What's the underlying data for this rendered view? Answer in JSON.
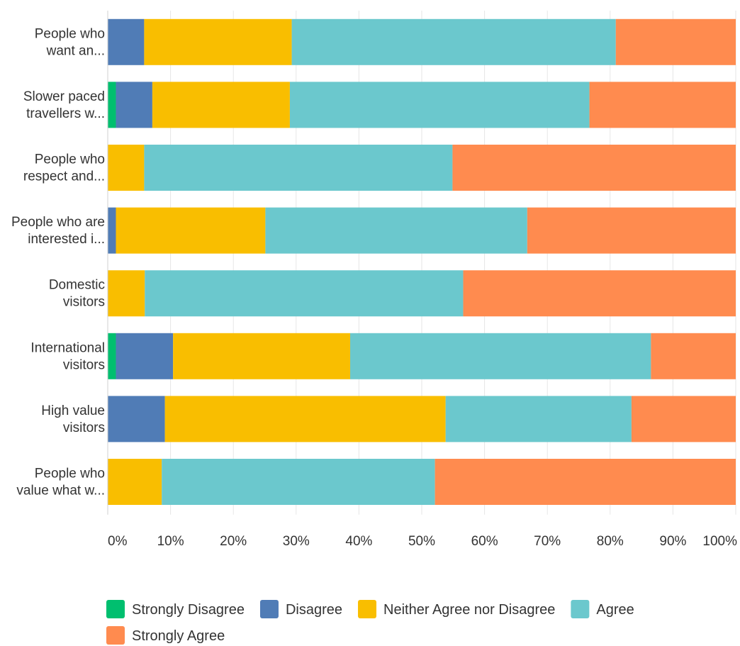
{
  "chart_data": {
    "type": "bar",
    "orientation": "horizontal",
    "stacked": true,
    "categories": [
      [
        "People who",
        "want an..."
      ],
      [
        "Slower paced",
        "travellers w..."
      ],
      [
        "People who",
        "respect and..."
      ],
      [
        "People who are",
        "interested i..."
      ],
      [
        "Domestic",
        "visitors"
      ],
      [
        "International",
        "visitors"
      ],
      [
        "High value",
        "visitors"
      ],
      [
        "People who",
        "value what w..."
      ]
    ],
    "series": [
      {
        "name": "Strongly Disagree",
        "color": "#00BF6F",
        "values": [
          0,
          1.3,
          0,
          0,
          0,
          1.3,
          0,
          0
        ]
      },
      {
        "name": "Disagree",
        "color": "#507CB6",
        "values": [
          5.8,
          5.8,
          0,
          1.3,
          0,
          9.1,
          9.1,
          0
        ]
      },
      {
        "name": "Neither Agree nor Disagree",
        "color": "#F9BE00",
        "values": [
          23.5,
          21.9,
          5.8,
          23.8,
          5.9,
          28.2,
          44.7,
          8.6
        ]
      },
      {
        "name": "Agree",
        "color": "#6BC8CD",
        "values": [
          51.6,
          47.7,
          49.1,
          41.7,
          50.7,
          47.9,
          29.6,
          43.5
        ]
      },
      {
        "name": "Strongly Agree",
        "color": "#FF8B4F",
        "values": [
          19.1,
          23.3,
          45.1,
          33.2,
          43.4,
          13.5,
          16.6,
          47.9
        ]
      }
    ],
    "xaxis": {
      "ticks": [
        0,
        10,
        20,
        30,
        40,
        50,
        60,
        70,
        80,
        90,
        100
      ],
      "tick_labels": [
        "0%",
        "10%",
        "20%",
        "30%",
        "40%",
        "50%",
        "60%",
        "70%",
        "80%",
        "90%",
        "100%"
      ],
      "range": [
        0,
        100
      ]
    },
    "grid": true,
    "legend_position": "bottom"
  }
}
